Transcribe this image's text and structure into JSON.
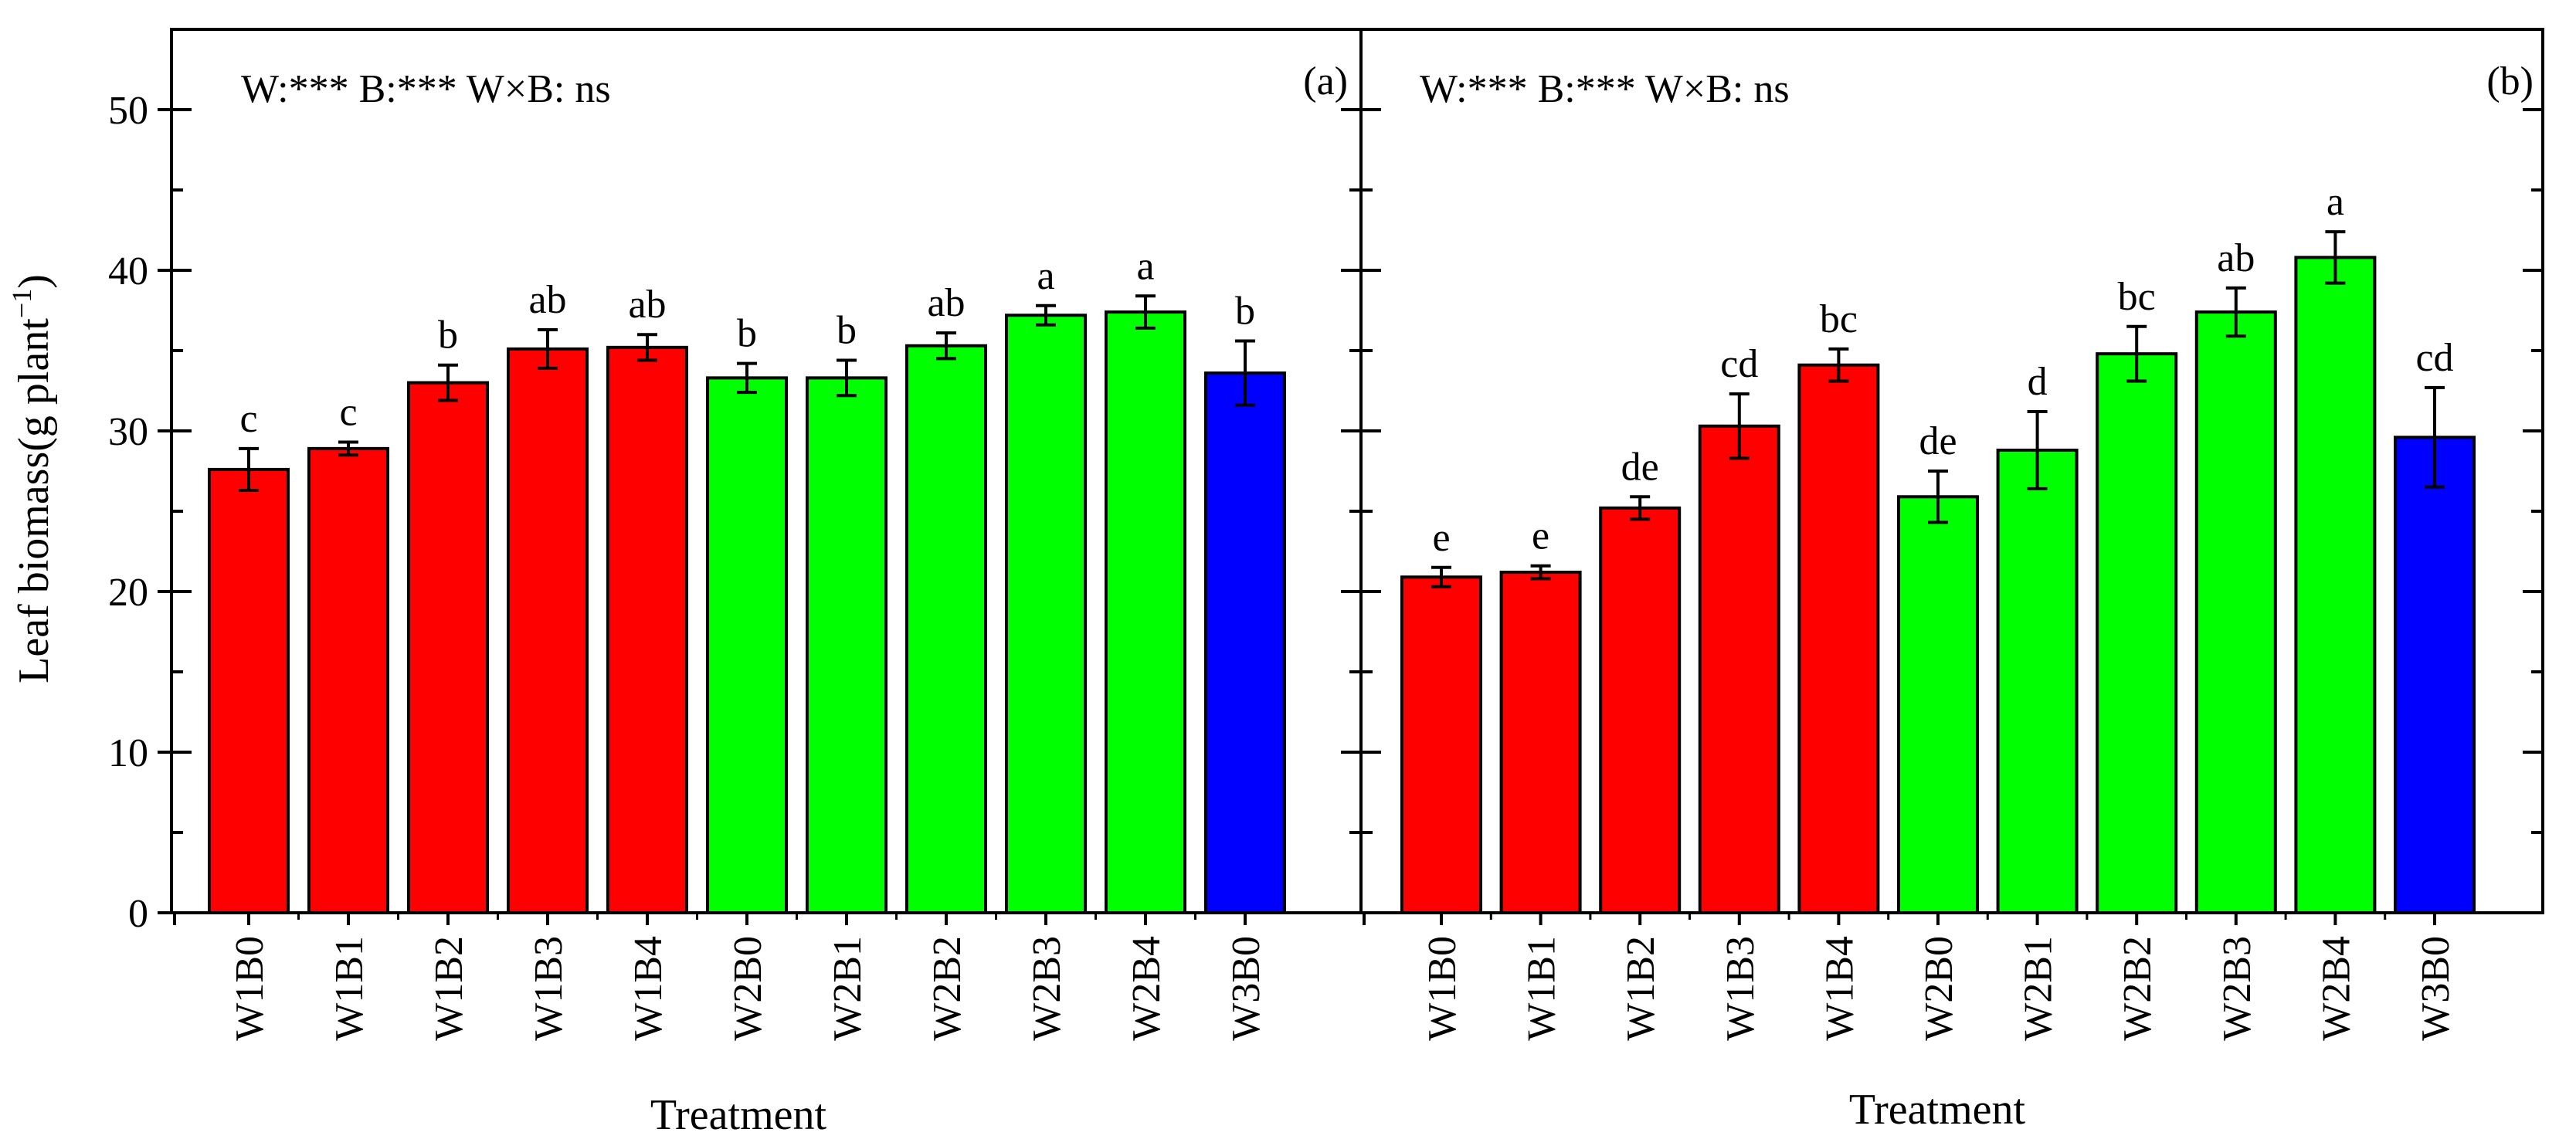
{
  "figure": {
    "ylabel": "Leaf biomass(g plant",
    "ylabel_sup": "−1",
    "ylabel_close": ")",
    "xlabel": "Treatment"
  },
  "colors": {
    "W1": "#ff0000",
    "W2": "#00ff00",
    "W3": "#0000ff"
  },
  "chart_data": [
    {
      "type": "bar",
      "panel": "(a)",
      "annotation": "W:*** B:*** W×B:  ns",
      "xlabel": "Treatment",
      "ylabel": "Leaf biomass(g plant−1)",
      "ylim": [
        0,
        55
      ],
      "yticks": [
        0,
        10,
        20,
        30,
        40,
        50
      ],
      "categories": [
        "W1B0",
        "W1B1",
        "W1B2",
        "W1B3",
        "W1B4",
        "W2B0",
        "W2B1",
        "W2B2",
        "W2B3",
        "W2B4",
        "W3B0"
      ],
      "values": [
        27.6,
        28.9,
        33.0,
        35.1,
        35.2,
        33.3,
        33.3,
        35.3,
        37.2,
        37.4,
        33.6
      ],
      "errors": [
        1.3,
        0.4,
        1.1,
        1.2,
        0.8,
        0.9,
        1.1,
        0.8,
        0.6,
        1.0,
        2.0
      ],
      "letters": [
        "c",
        "c",
        "b",
        "ab",
        "ab",
        "b",
        "b",
        "ab",
        "a",
        "a",
        "b"
      ],
      "groups": [
        "W1",
        "W1",
        "W1",
        "W1",
        "W1",
        "W2",
        "W2",
        "W2",
        "W2",
        "W2",
        "W3"
      ]
    },
    {
      "type": "bar",
      "panel": "(b)",
      "annotation": "W:*** B:*** W×B:  ns",
      "xlabel": "Treatment",
      "ylabel": "Leaf biomass(g plant−1)",
      "ylim": [
        0,
        55
      ],
      "yticks": [
        0,
        10,
        20,
        30,
        40,
        50
      ],
      "categories": [
        "W1B0",
        "W1B1",
        "W1B2",
        "W1B3",
        "W1B4",
        "W2B0",
        "W2B1",
        "W2B2",
        "W2B3",
        "W2B4",
        "W3B0"
      ],
      "values": [
        20.9,
        21.2,
        25.2,
        30.3,
        34.1,
        25.9,
        28.8,
        34.8,
        37.4,
        40.8,
        29.6
      ],
      "errors": [
        0.6,
        0.4,
        0.7,
        2.0,
        1.0,
        1.6,
        2.4,
        1.7,
        1.5,
        1.6,
        3.1
      ],
      "letters": [
        "e",
        "e",
        "de",
        "cd",
        "bc",
        "de",
        "d",
        "bc",
        "ab",
        "a",
        "cd"
      ],
      "groups": [
        "W1",
        "W1",
        "W1",
        "W1",
        "W1",
        "W2",
        "W2",
        "W2",
        "W2",
        "W2",
        "W3"
      ]
    }
  ]
}
